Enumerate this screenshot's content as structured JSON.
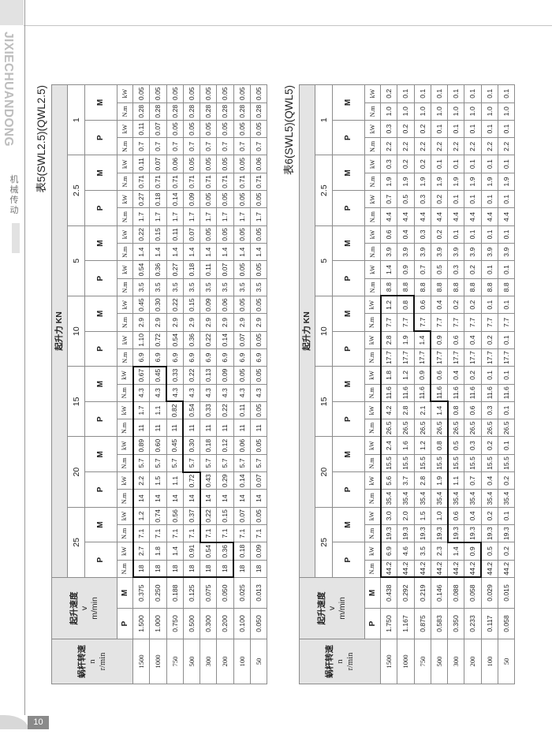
{
  "sidebar": {
    "brand": "JIXIECHUANDONG",
    "brand_cn": "机械传动",
    "page_number": "10"
  },
  "tables": [
    {
      "title": "表5(SWL2.5)(QWL2.5)",
      "load_header": "起升力 KN",
      "n_header": [
        "蜗杆转速",
        "n",
        "r/min"
      ],
      "v_header": [
        "起升速度",
        "v",
        "m/min"
      ],
      "v_cols": [
        "P",
        "M"
      ],
      "loads": [
        "25",
        "20",
        "15",
        "10",
        "5",
        "2.5",
        "1"
      ],
      "pm": [
        "P",
        "M"
      ],
      "units": [
        "N.m",
        "kW"
      ],
      "rows": [
        {
          "n": "1500",
          "v": [
            "1.500",
            "0.375"
          ],
          "values": [
            "18",
            "2.7",
            "7.1",
            "1.2",
            "14",
            "2.2",
            "5.7",
            "0.89",
            "11",
            "1.7",
            "4.3",
            "0.67",
            "6.9",
            "1.10",
            "2.9",
            "0.45",
            "3.5",
            "0.54",
            "1.4",
            "0.22",
            "1.7",
            "0.27",
            "0.71",
            "0.11",
            "0.7",
            "0.11",
            "0.28",
            "0.05"
          ]
        },
        {
          "n": "1000",
          "v": [
            "1.000",
            "0.250"
          ],
          "values": [
            "18",
            "1.8",
            "7.1",
            "0.74",
            "14",
            "1.5",
            "5.7",
            "0.60",
            "11",
            "1.1",
            "4.3",
            "0.45",
            "6.9",
            "0.72",
            "2.9",
            "0.30",
            "3.5",
            "0.36",
            "1.4",
            "0.15",
            "1.7",
            "0.18",
            "0.71",
            "0.07",
            "0.7",
            "0.07",
            "0.28",
            "0.05"
          ]
        },
        {
          "n": "750",
          "v": [
            "0.750",
            "0.188"
          ],
          "values": [
            "18",
            "1.4",
            "7.1",
            "0.56",
            "14",
            "1.1",
            "5.7",
            "0.45",
            "11",
            "0.82",
            "4.3",
            "0.33",
            "6.9",
            "0.54",
            "2.9",
            "0.22",
            "3.5",
            "0.27",
            "1.4",
            "0.11",
            "1.7",
            "0.14",
            "0.71",
            "0.06",
            "0.7",
            "0.05",
            "0.28",
            "0.05"
          ]
        },
        {
          "n": "500",
          "v": [
            "0.500",
            "0.125"
          ],
          "values": [
            "18",
            "0.91",
            "7.1",
            "0.37",
            "14",
            "0.72",
            "5.7",
            "0.30",
            "11",
            "0.54",
            "4.3",
            "0.22",
            "6.9",
            "0.36",
            "2.9",
            "0.15",
            "3.5",
            "0.18",
            "1.4",
            "0.07",
            "1.7",
            "0.09",
            "0.71",
            "0.05",
            "0.7",
            "0.05",
            "0.28",
            "0.05"
          ]
        },
        {
          "n": "300",
          "v": [
            "0.300",
            "0.075"
          ],
          "values": [
            "18",
            "0.54",
            "7.1",
            "0.22",
            "14",
            "0.43",
            "5.7",
            "0.18",
            "11",
            "0.33",
            "4.3",
            "0.13",
            "6.9",
            "0.22",
            "2.9",
            "0.09",
            "3.5",
            "0.11",
            "1.4",
            "0.05",
            "1.7",
            "0.05",
            "0.71",
            "0.05",
            "0.7",
            "0.05",
            "0.28",
            "0.05"
          ]
        },
        {
          "n": "200",
          "v": [
            "0.200",
            "0.050"
          ],
          "values": [
            "18",
            "0.36",
            "7.1",
            "0.15",
            "14",
            "0.29",
            "5.7",
            "0.12",
            "11",
            "0.22",
            "4.3",
            "0.09",
            "6.9",
            "0.14",
            "2.9",
            "0.06",
            "3.5",
            "0.07",
            "1.4",
            "0.05",
            "1.7",
            "0.05",
            "0.71",
            "0.05",
            "0.7",
            "0.05",
            "0.28",
            "0.05"
          ]
        },
        {
          "n": "100",
          "v": [
            "0.100",
            "0.025"
          ],
          "values": [
            "18",
            "0.18",
            "7.1",
            "0.07",
            "14",
            "0.14",
            "5.7",
            "0.06",
            "11",
            "0.11",
            "4.3",
            "0.05",
            "6.9",
            "0.07",
            "2.9",
            "0.05",
            "3.5",
            "0.05",
            "1.4",
            "0.05",
            "1.7",
            "0.05",
            "0.71",
            "0.05",
            "0.7",
            "0.05",
            "0.28",
            "0.05"
          ]
        },
        {
          "n": "50",
          "v": [
            "0.050",
            "0.013"
          ],
          "values": [
            "18",
            "0.09",
            "7.1",
            "0.05",
            "14",
            "0.07",
            "5.7",
            "0.05",
            "11",
            "0.05",
            "4.3",
            "0.05",
            "6.9",
            "0.05",
            "2.9",
            "0.05",
            "3.5",
            "0.05",
            "1.4",
            "0.05",
            "1.7",
            "0.05",
            "0.71",
            "0.06",
            "0.7",
            "0.05",
            "0.28",
            "0.05"
          ]
        }
      ]
    },
    {
      "title": "表6(SWL5)(QWL5)",
      "load_header": "起升力 KN",
      "n_header": [
        "蜗杆转速",
        "n",
        "r/min"
      ],
      "v_header": [
        "起升速度",
        "v",
        "m/min"
      ],
      "v_cols": [
        "P",
        "M"
      ],
      "loads": [
        "25",
        "20",
        "15",
        "10",
        "5",
        "2.5",
        "1"
      ],
      "pm": [
        "P",
        "M"
      ],
      "units": [
        "N.m",
        "kW"
      ],
      "rows": [
        {
          "n": "1500",
          "v": [
            "1.750",
            "0.438"
          ],
          "values": [
            "44.2",
            "6.9",
            "19.3",
            "3.0",
            "35.4",
            "5.6",
            "15.5",
            "2.4",
            "26.5",
            "4.2",
            "11.6",
            "1.8",
            "17.7",
            "2.8",
            "7.7",
            "1.2",
            "8.8",
            "1.4",
            "3.9",
            "0.6",
            "4.4",
            "0.7",
            "1.9",
            "0.3",
            "2.2",
            "0.3",
            "1.0",
            "0.2"
          ]
        },
        {
          "n": "1000",
          "v": [
            "1.167",
            "0.292"
          ],
          "values": [
            "44.2",
            "4.6",
            "19.3",
            "2.0",
            "35.4",
            "3.7",
            "15.5",
            "1.6",
            "26.5",
            "2.8",
            "11.6",
            "1.2",
            "17.7",
            "1.9",
            "7.7",
            "0.8",
            "8.8",
            "0.9",
            "3.9",
            "0.4",
            "4.4",
            "0.5",
            "1.9",
            "0.2",
            "2.2",
            "0.2",
            "1.0",
            "0.1"
          ]
        },
        {
          "n": "750",
          "v": [
            "0.875",
            "0.219"
          ],
          "values": [
            "44.2",
            "3.5",
            "19.3",
            "1.5",
            "35.4",
            "2.8",
            "15.5",
            "1.2",
            "26.5",
            "2.1",
            "11.6",
            "0.9",
            "17.7",
            "1.4",
            "7.7",
            "0.6",
            "8.8",
            "0.7",
            "3.9",
            "0.3",
            "4.4",
            "0.3",
            "1.9",
            "0.2",
            "2.2",
            "0.2",
            "1.0",
            "0.1"
          ]
        },
        {
          "n": "500",
          "v": [
            "0.583",
            "0.146"
          ],
          "values": [
            "44.2",
            "2.3",
            "19.3",
            "1.0",
            "35.4",
            "1.9",
            "15.5",
            "0.8",
            "26.5",
            "1.4",
            "11.6",
            "0.6",
            "17.7",
            "0.9",
            "7.7",
            "0.4",
            "8.8",
            "0.5",
            "3.9",
            "0.2",
            "4.4",
            "0.2",
            "1.9",
            "0.1",
            "2.2",
            "0.1",
            "1.0",
            "0.1"
          ]
        },
        {
          "n": "300",
          "v": [
            "0.350",
            "0.088"
          ],
          "values": [
            "44.2",
            "1.4",
            "19.3",
            "0.6",
            "35.4",
            "1.1",
            "15.5",
            "0.5",
            "26.5",
            "0.8",
            "11.6",
            "0.4",
            "17.7",
            "0.6",
            "7.7",
            "0.2",
            "8.8",
            "0.3",
            "3.9",
            "0.1",
            "4.4",
            "0.1",
            "1.9",
            "0.1",
            "2.2",
            "0.1",
            "1.0",
            "0.1"
          ]
        },
        {
          "n": "200",
          "v": [
            "0.233",
            "0.058"
          ],
          "values": [
            "44.2",
            "0.9",
            "19.3",
            "0.4",
            "35.4",
            "0.7",
            "15.5",
            "0.3",
            "26.5",
            "0.6",
            "11.6",
            "0.2",
            "17.7",
            "0.4",
            "7.7",
            "0.2",
            "8.8",
            "0.2",
            "3.9",
            "0.1",
            "4.4",
            "0.1",
            "1.9",
            "0.1",
            "2.2",
            "0.1",
            "1.0",
            "0.1"
          ]
        },
        {
          "n": "100",
          "v": [
            "0.117",
            "0.029"
          ],
          "values": [
            "44.2",
            "0.5",
            "19.3",
            "0.2",
            "35.4",
            "0.4",
            "15.5",
            "0.2",
            "26.5",
            "0.3",
            "11.6",
            "0.1",
            "17.7",
            "0.2",
            "7.7",
            "0.1",
            "8.8",
            "0.1",
            "3.9",
            "0.1",
            "4.4",
            "0.1",
            "1.9",
            "0.1",
            "2.2",
            "0.1",
            "1.0",
            "0.1"
          ]
        },
        {
          "n": "50",
          "v": [
            "0.058",
            "0.015"
          ],
          "values": [
            "44.2",
            "0.2",
            "19.3",
            "0.1",
            "35.4",
            "0.2",
            "15.5",
            "0.1",
            "26.5",
            "0.1",
            "11.6",
            "0.1",
            "17.7",
            "0.1",
            "7.7",
            "0.1",
            "8.8",
            "0.1",
            "3.9",
            "0.1",
            "4.4",
            "0.1",
            "1.9",
            "0.1",
            "2.2",
            "0.1",
            "1.0",
            "0.1"
          ]
        }
      ]
    }
  ]
}
